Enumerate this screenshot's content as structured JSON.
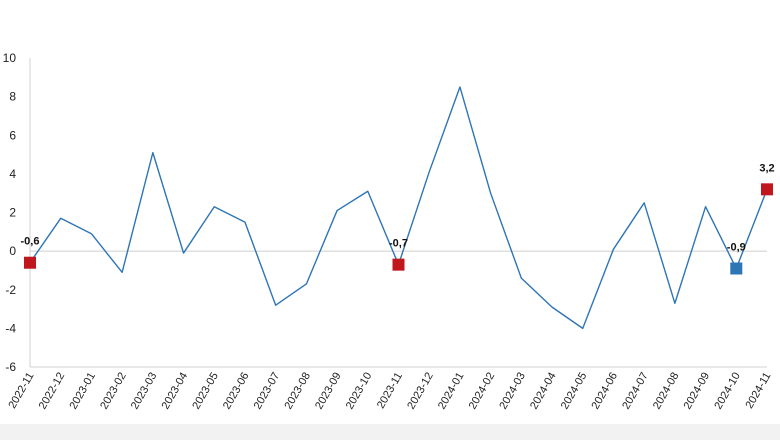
{
  "chart_data": {
    "type": "line",
    "title": "",
    "xlabel": "",
    "ylabel": "",
    "ylim": [
      -6,
      10
    ],
    "yticks": [
      -6,
      -4,
      -2,
      0,
      2,
      4,
      6,
      8,
      10
    ],
    "grid": false,
    "legend": "none",
    "colors": {
      "line": "#2e75b6",
      "marker_red": "#c0161d",
      "marker_blue": "#2e75b6",
      "axis": "#d0d0d0"
    },
    "categories": [
      "2022-11",
      "2022-12",
      "2023-01",
      "2023-02",
      "2023-03",
      "2023-04",
      "2023-05",
      "2023-06",
      "2023-07",
      "2023-08",
      "2023-09",
      "2023-10",
      "2023-11",
      "2023-12",
      "2024-01",
      "2024-02",
      "2024-03",
      "2024-04",
      "2024-05",
      "2024-06",
      "2024-07",
      "2024-08",
      "2024-09",
      "2024-10",
      "2024-11"
    ],
    "series": [
      {
        "values": [
          -0.6,
          1.7,
          0.9,
          -1.1,
          5.1,
          -0.1,
          2.3,
          1.5,
          -2.8,
          -1.7,
          2.1,
          3.1,
          -0.7,
          4.1,
          8.5,
          3.0,
          -1.4,
          -2.9,
          -4.0,
          0.1,
          2.5,
          -2.7,
          2.3,
          -0.9,
          3.2
        ]
      }
    ],
    "annotations": [
      {
        "index": 0,
        "label": "-0,6",
        "marker": "red"
      },
      {
        "index": 12,
        "label": "-0,7",
        "marker": "red"
      },
      {
        "index": 23,
        "label": "-0,9",
        "marker": "blue"
      },
      {
        "index": 24,
        "label": "3,2",
        "marker": "red"
      }
    ]
  }
}
